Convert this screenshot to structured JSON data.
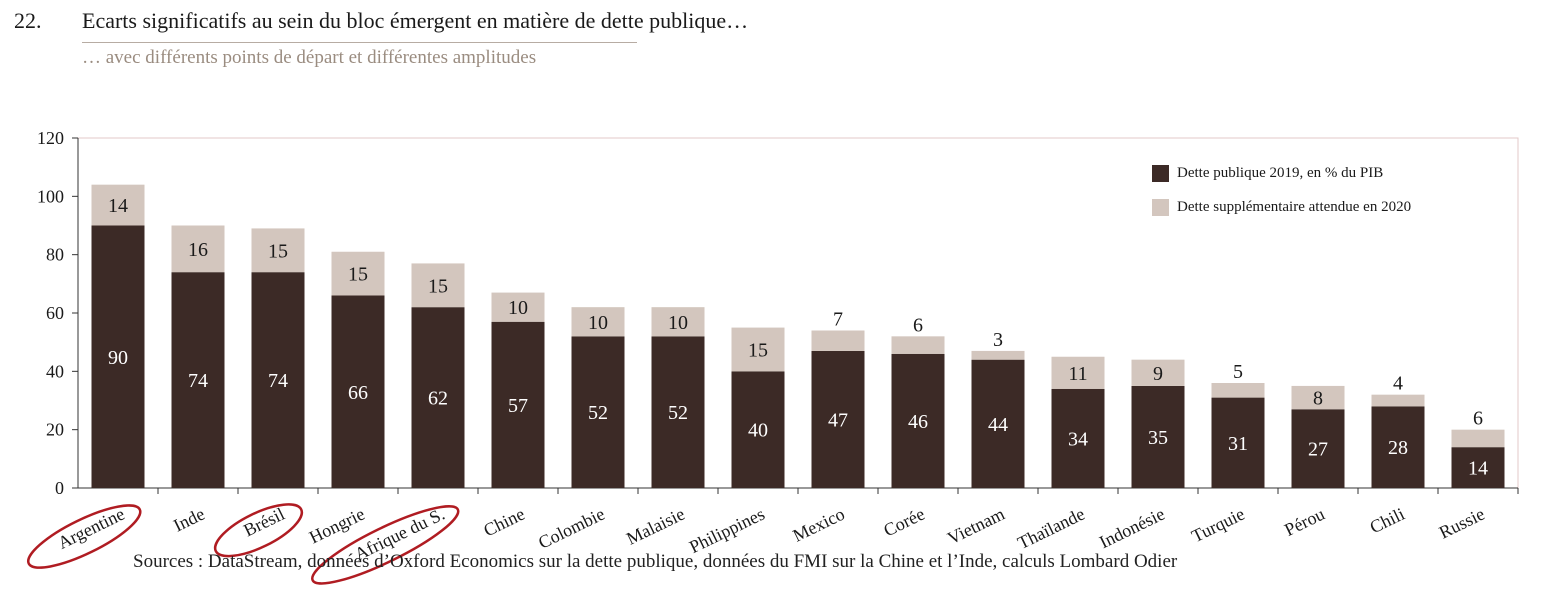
{
  "header": {
    "number": "22.",
    "title": "Ecarts significatifs au sein du bloc émergent en matière de dette publique…",
    "subtitle": "… avec différents points de départ et différentes amplitudes"
  },
  "source": "Sources : DataStream, données d’Oxford Economics sur la dette publique, données du FMI sur la Chine et l’Inde, calculs Lombard Odier",
  "colors": {
    "dark": "#3c2a26",
    "light": "#d3c6be",
    "circle": "#b01c22",
    "axis": "#333333",
    "frame": "#e3c8c8"
  },
  "chart_data": {
    "type": "bar",
    "stacked": true,
    "categories": [
      "Argentine",
      "Inde",
      "Brésil",
      "Hongrie",
      "Afrique du S.",
      "Chine",
      "Colombie",
      "Malaisie",
      "Philippines",
      "Mexico",
      "Corée",
      "Vietnam",
      "Thaïlande",
      "Indonésie",
      "Turquie",
      "Pérou",
      "Chili",
      "Russie"
    ],
    "highlighted_categories": [
      "Argentine",
      "Brésil",
      "Afrique du S."
    ],
    "series": [
      {
        "name": "Dette publique 2019, en % du PIB",
        "color": "#3c2a26",
        "values": [
          90,
          74,
          74,
          66,
          62,
          57,
          52,
          52,
          40,
          47,
          46,
          44,
          34,
          35,
          31,
          27,
          28,
          14
        ]
      },
      {
        "name": "Dette supplémentaire attendue en 2020",
        "color": "#d3c6be",
        "values": [
          14,
          16,
          15,
          15,
          15,
          10,
          10,
          10,
          15,
          7,
          6,
          3,
          11,
          9,
          5,
          8,
          4,
          6
        ]
      }
    ],
    "yticks": [
      "0",
      "20",
      "40",
      "60",
      "80",
      "100",
      "120"
    ],
    "ylim": [
      0,
      120
    ],
    "legend_position": "top-right",
    "grid": false
  }
}
